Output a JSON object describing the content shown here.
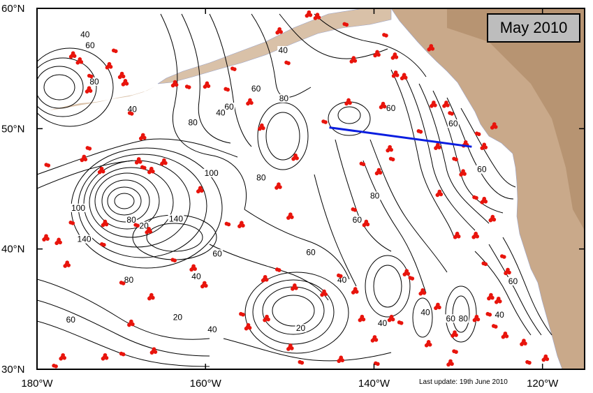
{
  "title": "May 2010",
  "update_note": "Last update: 19th June 2010",
  "colors": {
    "land": "#c9a98a",
    "land_dark": "#a8845f",
    "ocean": "#ffffff",
    "contour": "#000000",
    "float": "#e8140c",
    "section": "#0a1ee0",
    "frame": "#000000"
  },
  "axes": {
    "lon_range": [
      -180,
      -115
    ],
    "lat_range": [
      30,
      60
    ],
    "x_ticks": [
      {
        "lon": -180,
        "label": "180°W"
      },
      {
        "lon": -160,
        "label": "160°W"
      },
      {
        "lon": -140,
        "label": "140°W"
      },
      {
        "lon": -120,
        "label": "120°W"
      }
    ],
    "y_ticks": [
      {
        "lat": 60,
        "label": "60°N"
      },
      {
        "lat": 50,
        "label": "50°N"
      },
      {
        "lat": 40,
        "label": "40°N"
      },
      {
        "lat": 30,
        "label": "30°N"
      }
    ]
  },
  "section_line": {
    "start": [
      -145.3,
      50.1
    ],
    "end": [
      -128.4,
      48.5
    ]
  },
  "contour_labels": [
    {
      "text": "40",
      "lon": -174.3,
      "lat": 57.7
    },
    {
      "text": "60",
      "lon": -173.7,
      "lat": 56.8
    },
    {
      "text": "80",
      "lon": -173.2,
      "lat": 53.8
    },
    {
      "text": "40",
      "lon": -168.7,
      "lat": 51.5
    },
    {
      "text": "80",
      "lon": -161.5,
      "lat": 50.4
    },
    {
      "text": "60",
      "lon": -157.2,
      "lat": 51.7
    },
    {
      "text": "40",
      "lon": -158.2,
      "lat": 51.2
    },
    {
      "text": "40",
      "lon": -150.8,
      "lat": 56.4
    },
    {
      "text": "60",
      "lon": -154.0,
      "lat": 53.2
    },
    {
      "text": "80",
      "lon": -150.7,
      "lat": 52.4
    },
    {
      "text": "60",
      "lon": -138.0,
      "lat": 51.6
    },
    {
      "text": "60",
      "lon": -130.6,
      "lat": 50.3
    },
    {
      "text": "60",
      "lon": -127.2,
      "lat": 46.5
    },
    {
      "text": "100",
      "lon": -159.3,
      "lat": 46.2
    },
    {
      "text": "80",
      "lon": -153.4,
      "lat": 45.8
    },
    {
      "text": "100",
      "lon": -175.1,
      "lat": 43.3
    },
    {
      "text": "80",
      "lon": -168.8,
      "lat": 42.3
    },
    {
      "text": "20",
      "lon": -167.3,
      "lat": 41.8
    },
    {
      "text": "140",
      "lon": -163.5,
      "lat": 42.4
    },
    {
      "text": "60",
      "lon": -158.6,
      "lat": 39.5
    },
    {
      "text": "140",
      "lon": -174.4,
      "lat": 40.7
    },
    {
      "text": "40",
      "lon": -161.1,
      "lat": 37.6
    },
    {
      "text": "80",
      "lon": -169.1,
      "lat": 37.3
    },
    {
      "text": "20",
      "lon": -163.3,
      "lat": 34.2
    },
    {
      "text": "40",
      "lon": -159.2,
      "lat": 33.2
    },
    {
      "text": "60",
      "lon": -176.0,
      "lat": 34.0
    },
    {
      "text": "20",
      "lon": -148.7,
      "lat": 33.3
    },
    {
      "text": "60",
      "lon": -147.5,
      "lat": 39.6
    },
    {
      "text": "40",
      "lon": -143.8,
      "lat": 37.3
    },
    {
      "text": "60",
      "lon": -142.0,
      "lat": 42.3
    },
    {
      "text": "80",
      "lon": -139.9,
      "lat": 44.3
    },
    {
      "text": "40",
      "lon": -133.9,
      "lat": 34.6
    },
    {
      "text": "40",
      "lon": -139.0,
      "lat": 33.7
    },
    {
      "text": "60",
      "lon": -130.9,
      "lat": 34.1
    },
    {
      "text": "80",
      "lon": -129.4,
      "lat": 34.1
    },
    {
      "text": "40",
      "lon": -125.1,
      "lat": 34.4
    },
    {
      "text": "60",
      "lon": -123.5,
      "lat": 37.2
    }
  ],
  "float_clusters": [
    [
      -178.9,
      47.0
    ],
    [
      -179.0,
      40.9
    ],
    [
      -177.5,
      40.6
    ],
    [
      -176.0,
      42.2
    ],
    [
      -176.5,
      38.7
    ],
    [
      -174.5,
      47.5
    ],
    [
      -174.0,
      48.4
    ],
    [
      -172.4,
      46.5
    ],
    [
      -172.0,
      42.1
    ],
    [
      -172.3,
      40.4
    ],
    [
      -175.8,
      56.1
    ],
    [
      -175.0,
      55.6
    ],
    [
      -173.8,
      54.4
    ],
    [
      -171.5,
      55.2
    ],
    [
      -170.0,
      54.4
    ],
    [
      -169.0,
      51.3
    ],
    [
      -167.5,
      49.3
    ],
    [
      -168.0,
      47.3
    ],
    [
      -167.5,
      46.8
    ],
    [
      -166.5,
      46.5
    ],
    [
      -165.0,
      47.2
    ],
    [
      -168.3,
      42.0
    ],
    [
      -166.8,
      41.5
    ],
    [
      -160.7,
      44.9
    ],
    [
      -163.9,
      39.1
    ],
    [
      -161.5,
      38.4
    ],
    [
      -160.2,
      37.0
    ],
    [
      -170.0,
      37.2
    ],
    [
      -166.5,
      36.0
    ],
    [
      -168.9,
      33.8
    ],
    [
      -170.0,
      31.3
    ],
    [
      -172.0,
      31.0
    ],
    [
      -177.0,
      31.0
    ],
    [
      -178.0,
      30.3
    ],
    [
      -166.2,
      31.5
    ],
    [
      -159.9,
      53.6
    ],
    [
      -157.6,
      53.3
    ],
    [
      -154.8,
      52.2
    ],
    [
      -153.4,
      50.1
    ],
    [
      -150.4,
      55.5
    ],
    [
      -151.4,
      45.2
    ],
    [
      -149.4,
      47.6
    ],
    [
      -146.0,
      50.6
    ],
    [
      -143.1,
      52.2
    ],
    [
      -139.0,
      51.9
    ],
    [
      -141.5,
      47.1
    ],
    [
      -139.5,
      46.4
    ],
    [
      -138.2,
      48.3
    ],
    [
      -138.0,
      47.5
    ],
    [
      -137.5,
      54.5
    ],
    [
      -136.5,
      54.3
    ],
    [
      -134.7,
      49.8
    ],
    [
      -133.0,
      52.0
    ],
    [
      -131.5,
      52.0
    ],
    [
      -131.0,
      51.3
    ],
    [
      -132.3,
      44.6
    ],
    [
      -130.2,
      41.1
    ],
    [
      -128.1,
      44.3
    ],
    [
      -127.0,
      44.0
    ],
    [
      -128.0,
      41.1
    ],
    [
      -127.0,
      38.8
    ],
    [
      -126.2,
      36.0
    ],
    [
      -125.3,
      35.7
    ],
    [
      -125.8,
      33.6
    ],
    [
      -127.9,
      34.2
    ],
    [
      -130.5,
      32.9
    ],
    [
      -130.5,
      31.5
    ],
    [
      -132.5,
      35.2
    ],
    [
      -134.3,
      36.4
    ],
    [
      -137.0,
      33.9
    ],
    [
      -138.0,
      34.2
    ],
    [
      -140.0,
      32.5
    ],
    [
      -139.8,
      30.5
    ],
    [
      -141.5,
      34.2
    ],
    [
      -142.3,
      36.5
    ],
    [
      -144.2,
      37.8
    ],
    [
      -146.0,
      36.3
    ],
    [
      -149.5,
      36.8
    ],
    [
      -151.5,
      38.3
    ],
    [
      -152.8,
      34.2
    ],
    [
      -155.0,
      33.5
    ],
    [
      -157.5,
      42.1
    ],
    [
      -155.8,
      42.0
    ],
    [
      -150.0,
      42.7
    ],
    [
      -142.5,
      43.3
    ],
    [
      -141.0,
      42.1
    ],
    [
      -136.2,
      38.0
    ],
    [
      -135.7,
      37.6
    ],
    [
      -133.6,
      32.1
    ],
    [
      -131.0,
      30.5
    ],
    [
      -126.5,
      34.6
    ],
    [
      -124.5,
      32.8
    ],
    [
      -122.3,
      32.2
    ],
    [
      -121.8,
      30.6
    ],
    [
      -119.7,
      30.9
    ],
    [
      -124.2,
      38.1
    ],
    [
      -124.8,
      39.4
    ],
    [
      -126.0,
      42.5
    ],
    [
      -129.5,
      46.3
    ],
    [
      -130.5,
      47.5
    ],
    [
      -132.5,
      48.5
    ],
    [
      -129.2,
      48.7
    ],
    [
      -127.8,
      49.6
    ],
    [
      -127.0,
      48.5
    ],
    [
      -125.8,
      50.2
    ],
    [
      -155.8,
      34.6
    ],
    [
      -153.0,
      37.5
    ],
    [
      -150.0,
      31.8
    ],
    [
      -148.8,
      30.6
    ],
    [
      -144.0,
      30.8
    ],
    [
      -173.9,
      53.2
    ],
    [
      -170.9,
      56.5
    ],
    [
      -169.6,
      53.8
    ],
    [
      -163.7,
      53.7
    ],
    [
      -162.2,
      53.5
    ],
    [
      -147.8,
      59.5
    ],
    [
      -146.8,
      59.3
    ],
    [
      -143.5,
      58.7
    ],
    [
      -142.5,
      55.7
    ],
    [
      -139.7,
      56.2
    ],
    [
      -138.8,
      57.8
    ],
    [
      -137.6,
      56.0
    ],
    [
      -133.3,
      56.7
    ],
    [
      -156.8,
      55.0
    ],
    [
      -151.3,
      58.1
    ]
  ]
}
